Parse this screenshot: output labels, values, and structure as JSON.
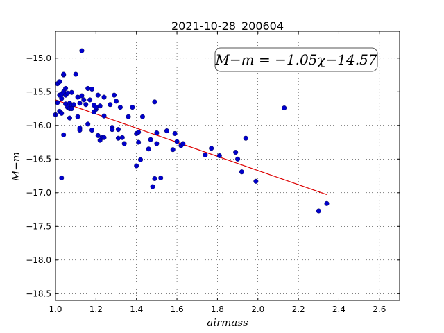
{
  "chart_data": {
    "type": "scatter",
    "title": "2021-10-28_200604",
    "xlabel": "airmass",
    "ylabel": "M−m",
    "xlim": [
      1.0,
      2.7
    ],
    "ylim": [
      -18.6,
      -14.6
    ],
    "x_ticks": [
      1.0,
      1.2,
      1.4,
      1.6,
      1.8,
      2.0,
      2.2,
      2.4,
      2.6
    ],
    "x_tick_labels": [
      "1.0",
      "1.2",
      "1.4",
      "1.6",
      "1.8",
      "2.0",
      "2.2",
      "2.4",
      "2.6"
    ],
    "y_ticks": [
      -15.0,
      -15.5,
      -16.0,
      -16.5,
      -17.0,
      -17.5,
      -18.0,
      -18.5
    ],
    "y_tick_labels": [
      "−15.0",
      "−15.5",
      "−16.0",
      "−16.5",
      "−17.0",
      "−17.5",
      "−18.0",
      "−18.5"
    ],
    "grid": true,
    "annotation": "M−m = −1.05χ−14.57",
    "annotation_position": "top-right",
    "point_color": "#0000cc",
    "fit_color": "#dd0000",
    "fit": {
      "slope": -1.05,
      "intercept": -14.57,
      "x_range": [
        1.0,
        2.34
      ]
    },
    "series": [
      {
        "x": [
          1.0,
          1.01,
          1.01,
          1.02,
          1.02,
          1.02,
          1.03,
          1.03,
          1.03,
          1.03,
          1.04,
          1.04,
          1.04,
          1.04,
          1.05,
          1.05,
          1.05,
          1.06,
          1.06,
          1.07,
          1.07,
          1.07,
          1.08,
          1.08,
          1.08,
          1.09,
          1.1,
          1.11,
          1.11,
          1.12,
          1.12,
          1.12,
          1.13,
          1.13,
          1.14,
          1.15,
          1.16,
          1.16,
          1.17,
          1.18,
          1.18,
          1.19,
          1.19,
          1.2,
          1.2,
          1.21,
          1.21,
          1.22,
          1.22,
          1.23,
          1.24,
          1.24,
          1.24,
          1.27,
          1.28,
          1.28,
          1.29,
          1.3,
          1.31,
          1.31,
          1.32,
          1.33,
          1.34,
          1.36,
          1.38,
          1.4,
          1.4,
          1.41,
          1.41,
          1.42,
          1.43,
          1.46,
          1.47,
          1.48,
          1.49,
          1.49,
          1.5,
          1.5,
          1.52,
          1.55,
          1.58,
          1.59,
          1.6,
          1.62,
          1.63,
          1.74,
          1.77,
          1.81,
          1.89,
          1.9,
          1.92,
          1.94,
          1.99,
          2.13,
          2.3,
          2.34
        ],
        "y": [
          -15.84,
          -15.38,
          -15.66,
          -15.35,
          -15.55,
          -15.79,
          -15.53,
          -15.6,
          -15.82,
          -16.78,
          -15.25,
          -15.24,
          -15.5,
          -16.14,
          -15.45,
          -15.68,
          -15.55,
          -15.52,
          -15.73,
          -15.67,
          -15.75,
          -15.89,
          -15.51,
          -15.7,
          -15.75,
          -15.69,
          -15.24,
          -15.58,
          -15.87,
          -16.04,
          -16.07,
          -15.67,
          -14.89,
          -15.56,
          -15.62,
          -15.69,
          -15.45,
          -15.98,
          -15.62,
          -15.46,
          -16.07,
          -15.7,
          -15.8,
          -15.76,
          -15.73,
          -15.55,
          -16.15,
          -16.22,
          -15.71,
          -16.18,
          -15.58,
          -15.86,
          -16.18,
          -15.69,
          -16.03,
          -16.06,
          -15.55,
          -15.64,
          -16.19,
          -16.06,
          -15.73,
          -16.18,
          -16.27,
          -15.87,
          -15.73,
          -16.12,
          -16.6,
          -16.1,
          -16.25,
          -16.51,
          -15.87,
          -16.35,
          -16.21,
          -16.91,
          -16.79,
          -15.65,
          -16.27,
          -16.11,
          -16.78,
          -16.08,
          -16.36,
          -16.12,
          -16.24,
          -16.3,
          -16.27,
          -16.44,
          -16.34,
          -16.45,
          -16.4,
          -16.5,
          -16.69,
          -16.19,
          -16.83,
          -15.74,
          -17.27,
          -17.16
        ]
      }
    ]
  }
}
